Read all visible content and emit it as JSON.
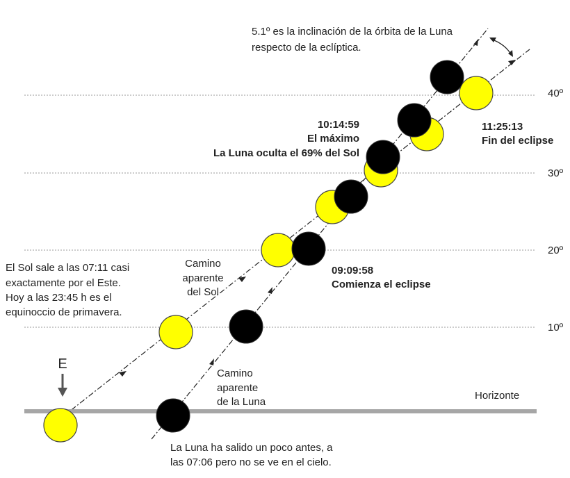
{
  "inclination": [
    "5.1º es la inclinación de la órbita de la Luna",
    "respecto de la eclíptica."
  ],
  "altitudes": [
    "10º",
    "20º",
    "30º",
    "40º"
  ],
  "maximum": [
    "10:14:59",
    "El máximo",
    "La Luna oculta el 69% del Sol"
  ],
  "end": [
    "11:25:13",
    "Fin del eclipse"
  ],
  "start": [
    "09:09:58",
    "Comienza el eclipse"
  ],
  "sunrise": [
    "El Sol sale a las 07:11 casi",
    "exactamente por el Este.",
    "Hoy a las 23:45 h es el",
    "equinoccio de primavera."
  ],
  "sun_path": [
    "Camino",
    "aparente",
    "del Sol"
  ],
  "moon_path": [
    "Camino",
    "aparente",
    "de la Luna"
  ],
  "horizon": "Horizonte",
  "east": "E",
  "moonrise": [
    "La Luna ha salido un poco antes, a",
    "las 07:06 pero no se ve en el cielo."
  ]
}
